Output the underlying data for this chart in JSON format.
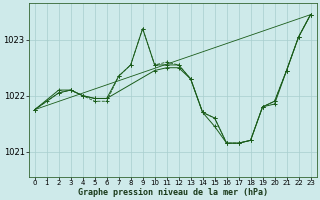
{
  "background_color": "#ceeaea",
  "grid_color": "#a8cece",
  "line_color": "#1a5c1a",
  "title": "Graphe pression niveau de la mer (hPa)",
  "yticks": [
    1021,
    1022,
    1023
  ],
  "ylim": [
    1020.55,
    1023.65
  ],
  "xlim": [
    -0.5,
    23.5
  ],
  "series": [
    {
      "x": [
        0,
        1,
        2,
        3,
        4,
        5,
        6,
        7,
        8,
        9,
        10,
        11,
        12,
        13,
        14,
        15,
        16,
        17,
        18,
        19,
        20,
        21,
        22,
        23
      ],
      "y": [
        1021.75,
        1021.9,
        1022.05,
        1022.1,
        1022.0,
        1021.9,
        1021.9,
        1022.35,
        1022.55,
        1023.2,
        1022.55,
        1022.6,
        1022.55,
        1022.3,
        1021.7,
        1021.6,
        1021.15,
        1021.15,
        1021.2,
        1021.8,
        1021.9,
        1022.45,
        1023.05,
        1023.45
      ],
      "style": "dashed"
    },
    {
      "x": [
        0,
        2,
        3,
        4,
        5,
        6,
        7,
        8,
        9,
        10,
        11,
        12,
        13,
        14,
        15,
        16,
        17,
        18,
        19,
        20,
        21,
        22,
        23
      ],
      "y": [
        1021.75,
        1022.1,
        1022.1,
        1022.0,
        1021.95,
        1021.95,
        1022.35,
        1022.55,
        1023.2,
        1022.55,
        1022.55,
        1022.55,
        1022.3,
        1021.7,
        1021.6,
        1021.15,
        1021.15,
        1021.2,
        1021.8,
        1021.9,
        1022.45,
        1023.05,
        1023.45
      ],
      "style": "solid"
    },
    {
      "x": [
        0,
        2,
        3,
        4,
        5,
        6,
        10,
        11,
        12,
        13,
        14,
        15,
        16,
        17,
        18,
        19,
        20,
        21,
        22,
        23
      ],
      "y": [
        1021.75,
        1022.05,
        1022.1,
        1022.0,
        1021.95,
        1021.95,
        1022.45,
        1022.5,
        1022.5,
        1022.3,
        1021.7,
        1021.45,
        1021.15,
        1021.15,
        1021.2,
        1021.8,
        1021.85,
        1022.45,
        1023.05,
        1023.45
      ],
      "style": "solid"
    },
    {
      "x": [
        0,
        23
      ],
      "y": [
        1021.75,
        1023.45
      ],
      "style": "solid_thin"
    }
  ]
}
